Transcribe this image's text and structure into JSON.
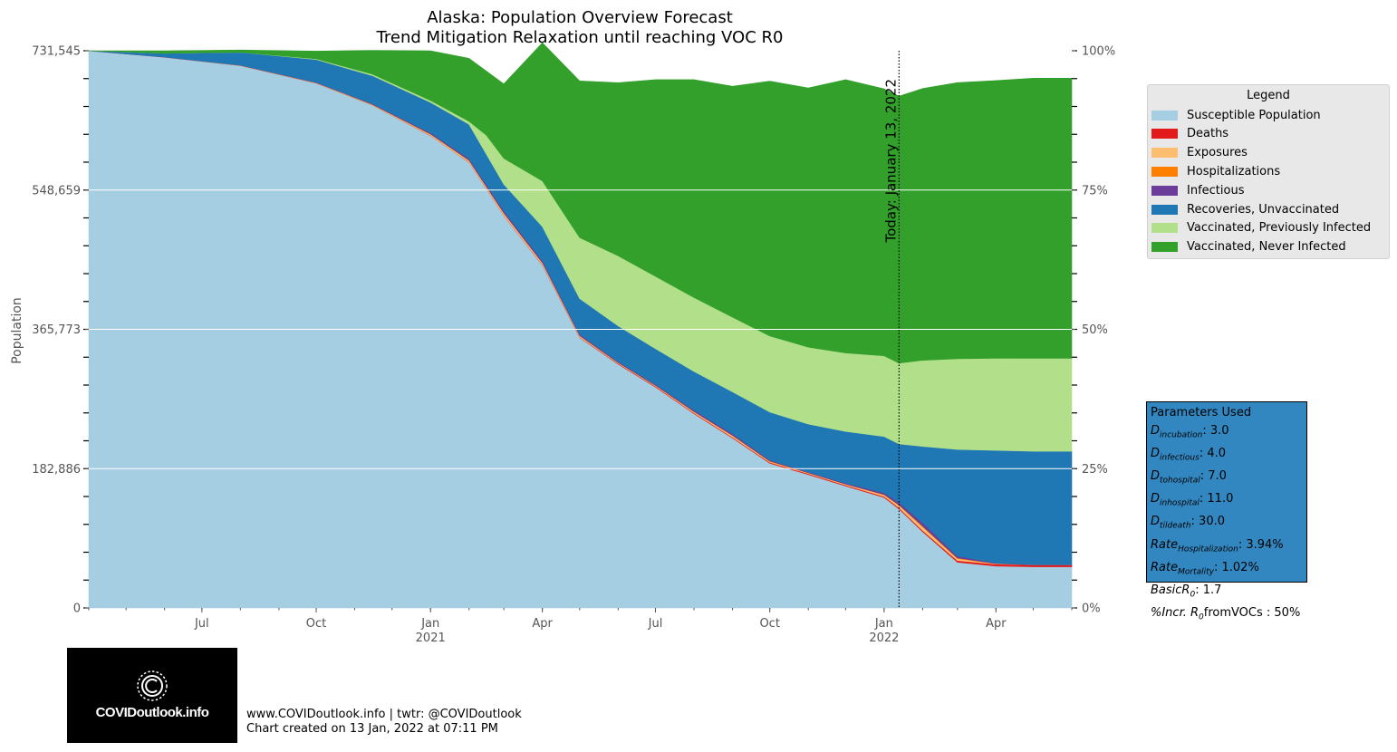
{
  "chart_data": {
    "type": "area",
    "stacked": true,
    "title": "Alaska: Population Overview Forecast",
    "subtitle": "Trend Mitigation Relaxation until reaching VOC R0",
    "ylabel": "Population",
    "y_ticks_left": [
      "731,545",
      "548,659",
      "365,773",
      "182,886",
      "0"
    ],
    "y_ticks_right": [
      "100%",
      "75%",
      "50%",
      "25%",
      "0%"
    ],
    "ylim": [
      0,
      731545
    ],
    "xlim": [
      "2020-04-01",
      "2022-06-01"
    ],
    "x_ticks": [
      {
        "label": "Jul",
        "sublabel": "",
        "date": "2020-07-01"
      },
      {
        "label": "Oct",
        "sublabel": "",
        "date": "2020-10-01"
      },
      {
        "label": "Jan",
        "sublabel": "2021",
        "date": "2021-01-01"
      },
      {
        "label": "Apr",
        "sublabel": "",
        "date": "2021-04-01"
      },
      {
        "label": "Jul",
        "sublabel": "",
        "date": "2021-07-01"
      },
      {
        "label": "Oct",
        "sublabel": "",
        "date": "2021-10-01"
      },
      {
        "label": "Jan",
        "sublabel": "2022",
        "date": "2022-01-01"
      },
      {
        "label": "Apr",
        "sublabel": "",
        "date": "2022-04-01"
      }
    ],
    "today_date": "2022-01-13",
    "today_label": "Today: January 13, 2022",
    "grid": true,
    "legend_position": "right",
    "x": [
      "2020-04-01",
      "2020-06-01",
      "2020-08-01",
      "2020-10-01",
      "2020-11-15",
      "2021-01-01",
      "2021-02-01",
      "2021-02-15",
      "2021-03-01",
      "2021-04-01",
      "2021-05-01",
      "2021-06-01",
      "2021-07-01",
      "2021-08-01",
      "2021-09-01",
      "2021-10-01",
      "2021-11-01",
      "2021-12-01",
      "2022-01-01",
      "2022-01-13",
      "2022-02-01",
      "2022-03-01",
      "2022-04-01",
      "2022-05-01",
      "2022-06-01"
    ],
    "series": [
      {
        "name": "Susceptible Population",
        "color": "#a6cee3",
        "values": [
          731545,
          723000,
          712000,
          689000,
          660000,
          620000,
          585000,
          550000,
          515000,
          450000,
          355000,
          320000,
          290000,
          255000,
          223000,
          190000,
          175000,
          160000,
          145000,
          130000,
          100000,
          60000,
          55000,
          54000,
          54000
        ]
      },
      {
        "name": "Deaths",
        "color": "#e31a1c",
        "values": [
          0,
          50,
          100,
          150,
          200,
          300,
          400,
          450,
          500,
          600,
          700,
          800,
          900,
          1000,
          1100,
          1200,
          1300,
          1350,
          1450,
          1550,
          1800,
          2200,
          2500,
          2600,
          2600
        ]
      },
      {
        "name": "Exposures",
        "color": "#fdbf6f",
        "values": [
          0,
          50,
          200,
          400,
          800,
          1500,
          2000,
          2200,
          2500,
          2200,
          1500,
          1000,
          1000,
          1500,
          2000,
          1200,
          800,
          1000,
          2000,
          3000,
          4500,
          2500,
          500,
          0,
          0
        ]
      },
      {
        "name": "Hospitalizations",
        "color": "#ff7f00",
        "values": [
          0,
          20,
          50,
          100,
          200,
          400,
          500,
          600,
          600,
          500,
          400,
          300,
          300,
          400,
          500,
          400,
          300,
          300,
          500,
          800,
          1200,
          800,
          200,
          0,
          0
        ]
      },
      {
        "name": "Infectious",
        "color": "#6a3d9a",
        "values": [
          0,
          50,
          200,
          400,
          800,
          1500,
          2000,
          2300,
          2600,
          2300,
          1600,
          1100,
          1100,
          1600,
          2100,
          1300,
          900,
          1100,
          2100,
          3100,
          4600,
          2600,
          600,
          100,
          100
        ]
      },
      {
        "name": "Recoveries, Unvaccinated",
        "color": "#1f78b4",
        "values": [
          0,
          5000,
          17000,
          30000,
          37000,
          40000,
          45000,
          40000,
          35000,
          45000,
          47000,
          47000,
          47000,
          51000,
          55000,
          63000,
          63000,
          68000,
          74000,
          77000,
          100000,
          140000,
          148000,
          149000,
          149000
        ]
      },
      {
        "name": "Vaccinated, Previously Infected",
        "color": "#b2df8a",
        "values": [
          0,
          0,
          0,
          800,
          2000,
          2500,
          4000,
          25000,
          34000,
          60000,
          80000,
          92000,
          95000,
          97000,
          98000,
          100000,
          101000,
          103000,
          106000,
          106000,
          113000,
          119000,
          121000,
          122000,
          122000
        ]
      },
      {
        "name": "Vaccinated, Never Infected",
        "color": "#33a02c",
        "values": [
          0,
          3375,
          2995,
          10195,
          31000,
          65345,
          82645,
          84245,
          97845,
          181445,
          205745,
          227345,
          258345,
          286045,
          303245,
          334545,
          340345,
          358845,
          350545,
          350545,
          356845,
          362545,
          364645,
          367745,
          367745
        ]
      }
    ]
  },
  "legend": {
    "title": "Legend",
    "items": [
      {
        "label": "Susceptible Population",
        "color": "#a6cee3"
      },
      {
        "label": "Deaths",
        "color": "#e31a1c"
      },
      {
        "label": "Exposures",
        "color": "#fdbf6f"
      },
      {
        "label": "Hospitalizations",
        "color": "#ff7f00"
      },
      {
        "label": "Infectious",
        "color": "#6a3d9a"
      },
      {
        "label": "Recoveries, Unvaccinated",
        "color": "#1f78b4"
      },
      {
        "label": "Vaccinated, Previously Infected",
        "color": "#b2df8a"
      },
      {
        "label": "Vaccinated, Never Infected",
        "color": "#33a02c"
      }
    ]
  },
  "parameters": {
    "title": "Parameters Used",
    "rows": [
      {
        "base": "D",
        "sub": "incubation",
        "value": ": 3.0"
      },
      {
        "base": "D",
        "sub": "infectious",
        "value": ": 4.0"
      },
      {
        "base": "D",
        "sub": "tohospital",
        "value": ": 7.0"
      },
      {
        "base": "D",
        "sub": "inhospital",
        "value": ": 11.0"
      },
      {
        "base": "D",
        "sub": "tildeath",
        "value": ": 30.0"
      },
      {
        "base": "Rate",
        "sub": "Hospitalization",
        "value": ": 3.94%"
      },
      {
        "base": "Rate",
        "sub": "Mortality",
        "value": ": 1.02%"
      },
      {
        "base": "BasicR",
        "sub": "0",
        "value": ": 1.7"
      },
      {
        "base": "%Incr. R",
        "sub": "0",
        "value": "fromVOCs : 50%"
      }
    ]
  },
  "logo": {
    "text": "COVIDoutlook.info"
  },
  "footer": {
    "line1": "www.COVIDoutlook.info | twtr: @COVIDoutlook",
    "line2": "Chart created on 13 Jan, 2022 at 07:11 PM"
  }
}
